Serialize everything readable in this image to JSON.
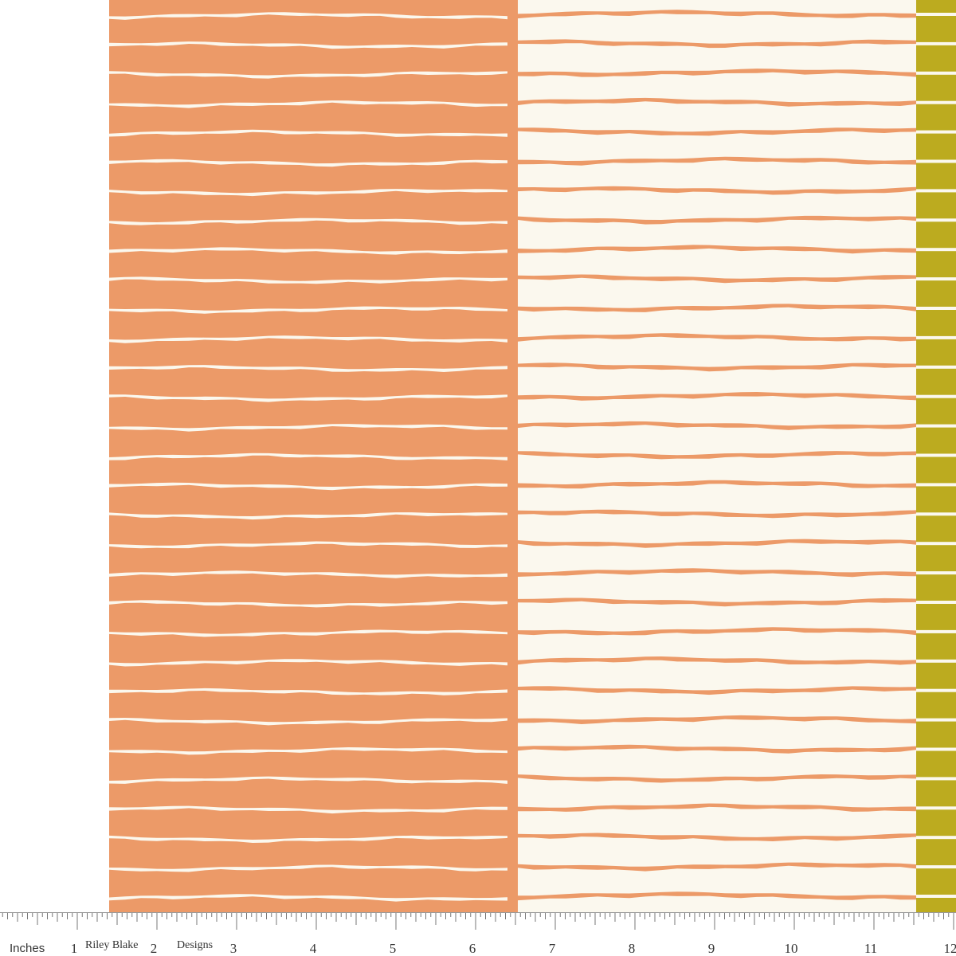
{
  "ruler": {
    "unit": "Inches",
    "brand": "Riley Blake",
    "brand_suffix": "Designs",
    "labels": [
      1,
      2,
      3,
      4,
      5,
      6,
      7,
      8,
      9,
      10,
      11,
      12
    ]
  }
}
